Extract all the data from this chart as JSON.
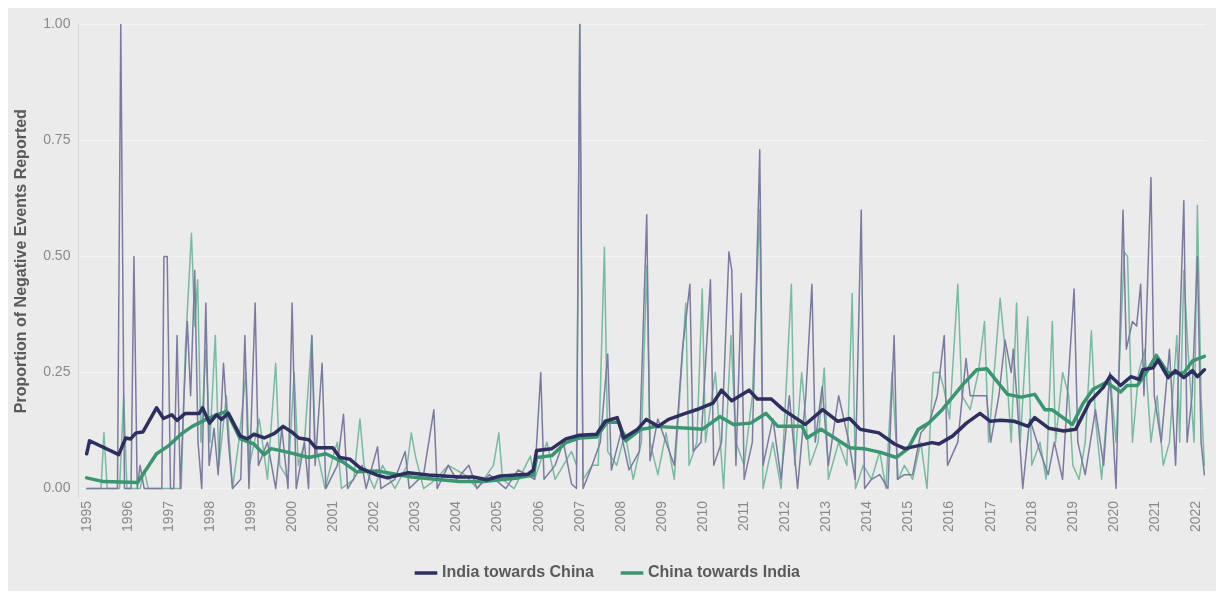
{
  "chart_data": {
    "type": "line",
    "ylabel": "Proportion of Negative Events Reported",
    "xlim": [
      1994.8,
      2022.25
    ],
    "xticks": [
      1995,
      1996,
      1997,
      1998,
      1999,
      2000,
      2001,
      2002,
      2003,
      2004,
      2005,
      2006,
      2007,
      2008,
      2009,
      2010,
      2011,
      2012,
      2013,
      2014,
      2015,
      2016,
      2017,
      2018,
      2019,
      2020,
      2021,
      2022
    ],
    "ylim": [
      -0.02,
      1.0
    ],
    "yticks": [
      {
        "value": 0,
        "label": "0.00"
      },
      {
        "value": 0.25,
        "label": "0.25"
      },
      {
        "value": 0.5,
        "label": "0.50"
      },
      {
        "value": 0.75,
        "label": "0.75"
      },
      {
        "value": 1,
        "label": "1.00"
      }
    ],
    "grid": "y",
    "legend": "bottom",
    "marker": "none",
    "series": [
      {
        "color": "#7b7ba0",
        "x": [
          1995.0,
          1995.75,
          1995.83,
          1995.92,
          1996.08,
          1996.15,
          1996.23,
          1996.3,
          1996.4,
          1996.83,
          1996.88,
          1996.96,
          1997.04,
          1997.12,
          1997.2,
          1997.28,
          1997.37,
          1997.45,
          1997.53,
          1997.63,
          1997.71,
          1997.8,
          1997.9,
          1997.98,
          1998.1,
          1998.2,
          1998.33,
          1998.45,
          1998.55,
          1998.75,
          1998.85,
          1998.95,
          1999.1,
          1999.18,
          1999.4,
          1999.6,
          1999.75,
          1999.9,
          2000.0,
          2000.1,
          2000.3,
          2000.4,
          2000.48,
          2000.56,
          2000.73,
          2000.82,
          2001.1,
          2001.25,
          2001.35,
          2001.7,
          2001.8,
          2002.08,
          2002.16,
          2002.5,
          2002.75,
          2002.85,
          2003.2,
          2003.45,
          2003.53,
          2003.8,
          2004.0,
          2004.3,
          2004.5,
          2004.8,
          2005.2,
          2005.5,
          2005.9,
          2006.05,
          2006.13,
          2006.4,
          2006.6,
          2006.8,
          2006.92,
          2007.0,
          2007.08,
          2007.3,
          2007.5,
          2007.68,
          2007.77,
          2008.0,
          2008.2,
          2008.45,
          2008.63,
          2008.71,
          2008.9,
          2009.1,
          2009.3,
          2009.5,
          2009.68,
          2009.76,
          2009.95,
          2010.18,
          2010.26,
          2010.45,
          2010.63,
          2010.7,
          2010.8,
          2010.93,
          2011.0,
          2011.2,
          2011.38,
          2011.46,
          2011.7,
          2011.9,
          2012.1,
          2012.3,
          2012.5,
          2012.65,
          2012.73,
          2012.9,
          2013.05,
          2013.3,
          2013.55,
          2013.7,
          2013.85,
          2013.93,
          2014.1,
          2014.3,
          2014.5,
          2014.65,
          2014.73,
          2014.9,
          2015.1,
          2015.3,
          2015.5,
          2015.7,
          2015.87,
          2015.95,
          2016.2,
          2016.4,
          2016.5,
          2016.7,
          2016.9,
          2017.0,
          2017.2,
          2017.35,
          2017.5,
          2017.55,
          2017.65,
          2017.78,
          2017.95,
          2018.2,
          2018.4,
          2018.55,
          2018.75,
          2018.9,
          2019.03,
          2019.12,
          2019.3,
          2019.55,
          2019.75,
          2019.9,
          2020.05,
          2020.22,
          2020.3,
          2020.45,
          2020.55,
          2020.65,
          2020.73,
          2020.9,
          2020.98,
          2021.15,
          2021.35,
          2021.5,
          2021.7,
          2021.78,
          2021.9,
          2022.03,
          2022.12,
          2022.2
        ],
        "values": [
          0,
          0,
          1.0,
          0,
          0,
          0.5,
          0,
          0.05,
          0,
          0,
          0.5,
          0.5,
          0,
          0,
          0.33,
          0,
          0.2,
          0.36,
          0.2,
          0.47,
          0.1,
          0,
          0.4,
          0.05,
          0.13,
          0.03,
          0.27,
          0.1,
          0,
          0.02,
          0.33,
          0,
          0.4,
          0.05,
          0.1,
          0,
          0.13,
          0,
          0.4,
          0,
          0.1,
          0,
          0.33,
          0.05,
          0.27,
          0,
          0.05,
          0.16,
          0,
          0.05,
          0,
          0.09,
          0,
          0.02,
          0.08,
          0,
          0.03,
          0.17,
          0,
          0.05,
          0.02,
          0.05,
          0,
          0.03,
          0,
          0.04,
          0.02,
          0.25,
          0.02,
          0.05,
          0.1,
          0.01,
          0,
          1.0,
          0,
          0.05,
          0.1,
          0.29,
          0.04,
          0.12,
          0.04,
          0.08,
          0.59,
          0.06,
          0.15,
          0.1,
          0.05,
          0.3,
          0.44,
          0.08,
          0.1,
          0.45,
          0.05,
          0.1,
          0.51,
          0.47,
          0.05,
          0.42,
          0.02,
          0.1,
          0.73,
          0.05,
          0.15,
          0.02,
          0.2,
          0,
          0.2,
          0.44,
          0.1,
          0.22,
          0.05,
          0.2,
          0.1,
          0.02,
          0.6,
          0,
          0.02,
          0.03,
          0,
          0.33,
          0.02,
          0.03,
          0.03,
          0.12,
          0.14,
          0.2,
          0.33,
          0.05,
          0.1,
          0.28,
          0.2,
          0.2,
          0.2,
          0.1,
          0.2,
          0.32,
          0.25,
          0.3,
          0.18,
          0,
          0.15,
          0.08,
          0.03,
          0.1,
          0.02,
          0.25,
          0.43,
          0.1,
          0.03,
          0.17,
          0.05,
          0.25,
          0,
          0.6,
          0.3,
          0.36,
          0.35,
          0.44,
          0.2,
          0.67,
          0.2,
          0.1,
          0.3,
          0.05,
          0.62,
          0.1,
          0.2,
          0.5,
          0.1,
          0.03
        ]
      },
      {
        "color": "#79bba0",
        "x": [
          1995.0,
          1995.35,
          1995.42,
          1995.5,
          1995.8,
          1995.9,
          1995.98,
          1996.3,
          1996.4,
          1996.5,
          1997.3,
          1997.4,
          1997.55,
          1997.63,
          1997.7,
          1997.78,
          1997.9,
          1998.0,
          1998.13,
          1998.22,
          1998.4,
          1998.55,
          1998.7,
          1998.88,
          1998.96,
          1999.2,
          1999.4,
          1999.6,
          1999.7,
          1999.9,
          2000.05,
          2000.15,
          2000.3,
          2000.48,
          2000.56,
          2000.8,
          2001.0,
          2001.1,
          2001.2,
          2001.5,
          2001.65,
          2001.75,
          2002.0,
          2002.2,
          2002.5,
          2002.8,
          2002.9,
          2003.0,
          2003.2,
          2003.5,
          2003.8,
          2004.2,
          2004.5,
          2004.9,
          2005.03,
          2005.12,
          2005.4,
          2005.8,
          2005.9,
          2006.2,
          2006.4,
          2006.6,
          2006.8,
          2006.92,
          2007.0,
          2007.08,
          2007.3,
          2007.45,
          2007.6,
          2007.68,
          2007.9,
          2008.1,
          2008.3,
          2008.5,
          2008.63,
          2008.71,
          2008.9,
          2009.1,
          2009.3,
          2009.58,
          2009.66,
          2009.85,
          2009.98,
          2010.06,
          2010.3,
          2010.5,
          2010.68,
          2010.8,
          2011.0,
          2011.2,
          2011.38,
          2011.46,
          2011.7,
          2011.9,
          2012.15,
          2012.23,
          2012.4,
          2012.6,
          2012.8,
          2012.95,
          2013.05,
          2013.3,
          2013.5,
          2013.63,
          2013.71,
          2013.9,
          2014.1,
          2014.3,
          2014.45,
          2014.6,
          2014.75,
          2014.9,
          2015.1,
          2015.3,
          2015.45,
          2015.6,
          2015.75,
          2015.85,
          2016.0,
          2016.2,
          2016.3,
          2016.5,
          2016.7,
          2016.85,
          2016.95,
          2017.23,
          2017.35,
          2017.5,
          2017.63,
          2017.72,
          2017.9,
          2018.0,
          2018.2,
          2018.35,
          2018.5,
          2018.58,
          2018.75,
          2018.9,
          2019.0,
          2019.15,
          2019.3,
          2019.45,
          2019.55,
          2019.7,
          2019.9,
          2020.05,
          2020.25,
          2020.33,
          2020.45,
          2020.6,
          2020.75,
          2020.9,
          2021.05,
          2021.2,
          2021.35,
          2021.53,
          2021.6,
          2021.7,
          2021.8,
          2021.95,
          2022.03,
          2022.12,
          2022.2
        ],
        "values": [
          0,
          0,
          0.12,
          0,
          0,
          0.2,
          0,
          0,
          0.04,
          0,
          0,
          0.3,
          0.55,
          0.35,
          0.45,
          0.1,
          0.3,
          0.1,
          0.33,
          0.05,
          0.2,
          0,
          0.1,
          0.25,
          0.05,
          0.15,
          0.02,
          0.27,
          0.05,
          0.02,
          0.25,
          0.05,
          0.1,
          0.33,
          0.1,
          0,
          0.07,
          0.1,
          0,
          0.02,
          0.15,
          0.05,
          0,
          0.05,
          0,
          0.05,
          0.12,
          0.07,
          0,
          0.02,
          0.05,
          0.03,
          0,
          0.05,
          0.12,
          0.02,
          0,
          0.07,
          0.02,
          0.1,
          0.02,
          0.05,
          0.08,
          0.05,
          1.0,
          0.02,
          0.05,
          0.05,
          0.52,
          0.08,
          0.05,
          0.12,
          0.02,
          0.1,
          0.48,
          0.1,
          0.03,
          0.12,
          0.02,
          0.4,
          0.05,
          0.1,
          0.43,
          0.1,
          0.25,
          0,
          0.33,
          0.1,
          0.05,
          0.2,
          0.6,
          0,
          0.1,
          0,
          0.44,
          0.05,
          0.25,
          0.05,
          0.1,
          0.26,
          0.02,
          0.1,
          0.05,
          0.42,
          0,
          0.05,
          0.02,
          0.08,
          0,
          0.25,
          0.02,
          0.05,
          0.02,
          0.1,
          0,
          0.25,
          0.25,
          0.22,
          0.15,
          0.44,
          0.2,
          0.17,
          0.25,
          0.36,
          0.1,
          0.41,
          0.3,
          0.1,
          0.4,
          0.1,
          0.37,
          0.05,
          0.1,
          0.02,
          0.36,
          0.1,
          0.25,
          0.2,
          0.05,
          0.02,
          0.1,
          0.34,
          0.15,
          0.02,
          0.25,
          0.1,
          0.51,
          0.5,
          0.1,
          0.25,
          0.3,
          0.1,
          0.2,
          0.05,
          0.1,
          0.33,
          0.1,
          0.47,
          0.3,
          0.1,
          0.61,
          0.2,
          0.05
        ]
      },
      {
        "name": "India towards China",
        "color": "#2e2f5e",
        "x": [
          1995.0,
          1995.07,
          1995.78,
          1995.95,
          1996.07,
          1996.2,
          1996.37,
          1996.7,
          1996.87,
          1997.07,
          1997.2,
          1997.4,
          1997.74,
          1997.82,
          1997.99,
          1998.16,
          1998.28,
          1998.45,
          1998.74,
          1998.91,
          1999.07,
          1999.32,
          1999.57,
          1999.78,
          1999.99,
          2000.16,
          2000.41,
          2000.57,
          2000.99,
          2001.16,
          2001.41,
          2001.66,
          2002.07,
          2002.32,
          2002.82,
          2003.32,
          2004.07,
          2004.41,
          2004.74,
          2005.07,
          2005.74,
          2005.87,
          2005.95,
          2006.32,
          2006.66,
          2006.99,
          2007.41,
          2007.62,
          2007.91,
          2008.07,
          2008.41,
          2008.62,
          2008.91,
          2009.16,
          2009.57,
          2009.91,
          2010.24,
          2010.45,
          2010.7,
          2011.12,
          2011.32,
          2011.66,
          2011.95,
          2012.49,
          2012.91,
          2013.28,
          2013.57,
          2013.82,
          2014.28,
          2014.66,
          2014.91,
          2015.57,
          2015.74,
          2016.07,
          2016.41,
          2016.74,
          2016.99,
          2017.24,
          2017.57,
          2017.91,
          2018.07,
          2018.41,
          2018.78,
          2019.07,
          2019.41,
          2019.74,
          2019.91,
          2020.16,
          2020.41,
          2020.62,
          2020.7,
          2020.95,
          2021.07,
          2021.32,
          2021.49,
          2021.7,
          2021.91,
          2022.03,
          2022.2
        ],
        "values": [
          0.075,
          0.103,
          0.073,
          0.109,
          0.107,
          0.12,
          0.122,
          0.174,
          0.151,
          0.159,
          0.147,
          0.162,
          0.162,
          0.174,
          0.141,
          0.159,
          0.149,
          0.162,
          0.113,
          0.107,
          0.117,
          0.109,
          0.119,
          0.134,
          0.122,
          0.109,
          0.105,
          0.088,
          0.088,
          0.067,
          0.063,
          0.044,
          0.029,
          0.023,
          0.034,
          0.029,
          0.025,
          0.025,
          0.019,
          0.027,
          0.031,
          0.04,
          0.082,
          0.086,
          0.107,
          0.115,
          0.117,
          0.145,
          0.153,
          0.109,
          0.128,
          0.149,
          0.134,
          0.149,
          0.162,
          0.172,
          0.184,
          0.212,
          0.189,
          0.212,
          0.193,
          0.193,
          0.17,
          0.138,
          0.17,
          0.145,
          0.151,
          0.128,
          0.12,
          0.096,
          0.086,
          0.099,
          0.096,
          0.113,
          0.141,
          0.162,
          0.145,
          0.147,
          0.145,
          0.134,
          0.153,
          0.13,
          0.124,
          0.128,
          0.187,
          0.218,
          0.243,
          0.222,
          0.241,
          0.235,
          0.256,
          0.26,
          0.277,
          0.239,
          0.254,
          0.239,
          0.254,
          0.241,
          0.256
        ]
      },
      {
        "name": "China towards India",
        "color": "#3a9670",
        "x": [
          1995.0,
          1995.41,
          1996.24,
          1996.7,
          1996.99,
          1997.32,
          1997.57,
          1997.91,
          1998.16,
          1998.41,
          1998.74,
          1999.07,
          1999.32,
          1999.49,
          1999.91,
          2000.41,
          2000.82,
          2001.24,
          2001.57,
          2002.07,
          2002.91,
          2004.07,
          2004.66,
          2005.49,
          2005.87,
          2005.95,
          2006.32,
          2006.66,
          2006.99,
          2007.41,
          2007.66,
          2007.95,
          2008.12,
          2008.49,
          2008.66,
          2008.82,
          2009.66,
          2009.99,
          2010.41,
          2010.74,
          2011.16,
          2011.53,
          2011.82,
          2012.41,
          2012.53,
          2012.87,
          2013.24,
          2013.57,
          2013.91,
          2014.32,
          2014.7,
          2014.99,
          2015.24,
          2015.49,
          2015.82,
          2016.32,
          2016.66,
          2016.91,
          2017.41,
          2017.74,
          2018.07,
          2018.32,
          2018.49,
          2018.99,
          2019.24,
          2019.49,
          2019.82,
          2020.16,
          2020.32,
          2020.57,
          2020.78,
          2021.03,
          2021.32,
          2021.7,
          2021.91,
          2022.2
        ],
        "values": [
          0.023,
          0.015,
          0.013,
          0.075,
          0.092,
          0.119,
          0.134,
          0.149,
          0.159,
          0.166,
          0.107,
          0.096,
          0.073,
          0.086,
          0.078,
          0.067,
          0.075,
          0.057,
          0.036,
          0.038,
          0.025,
          0.015,
          0.015,
          0.023,
          0.029,
          0.067,
          0.071,
          0.099,
          0.109,
          0.111,
          0.143,
          0.143,
          0.103,
          0.128,
          0.13,
          0.134,
          0.13,
          0.128,
          0.155,
          0.138,
          0.141,
          0.162,
          0.134,
          0.134,
          0.109,
          0.128,
          0.107,
          0.088,
          0.086,
          0.078,
          0.067,
          0.086,
          0.128,
          0.141,
          0.17,
          0.224,
          0.256,
          0.258,
          0.203,
          0.197,
          0.203,
          0.17,
          0.17,
          0.138,
          0.182,
          0.214,
          0.229,
          0.208,
          0.222,
          0.222,
          0.249,
          0.287,
          0.249,
          0.249,
          0.275,
          0.285
        ]
      }
    ]
  }
}
